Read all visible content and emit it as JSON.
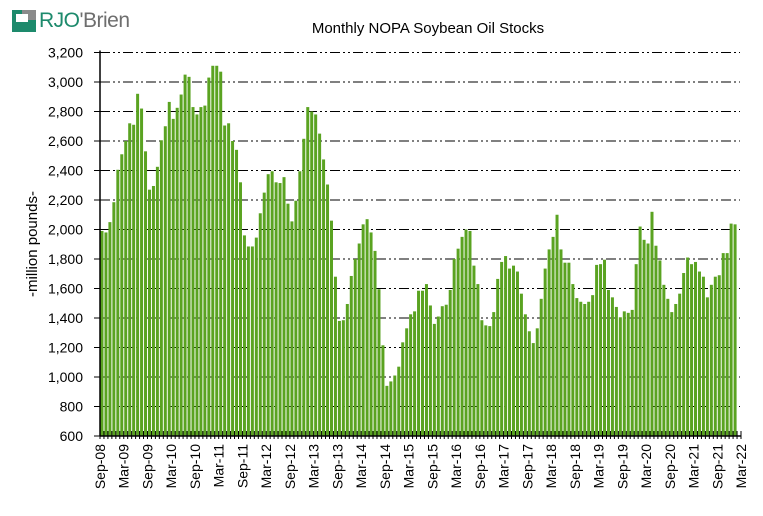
{
  "brand": {
    "logo_text_a": "RJO",
    "logo_text_b": "'Brien"
  },
  "chart_data": {
    "type": "bar",
    "title": "Monthly NOPA Soybean Oil Stocks",
    "xlabel": "",
    "ylabel": "-million pounds-",
    "ylim": [
      600,
      3200
    ],
    "yticks": [
      600,
      800,
      1000,
      1200,
      1400,
      1600,
      1800,
      2000,
      2200,
      2400,
      2600,
      2800,
      3000,
      3200
    ],
    "ytick_labels": [
      "600",
      "800",
      "1,000",
      "1,200",
      "1,400",
      "1,600",
      "1,800",
      "2,000",
      "2,200",
      "2,400",
      "2,600",
      "2,800",
      "3,000",
      "3,200"
    ],
    "grid": "horizontal dash-dot",
    "bar_color": "#5aa321",
    "start_month": "Sep-08",
    "axis_end_month": "Mar-22",
    "xtick_labels": [
      "Sep-08",
      "Mar-09",
      "Sep-09",
      "Mar-10",
      "Sep-10",
      "Mar-11",
      "Sep-11",
      "Mar-12",
      "Sep-12",
      "Mar-13",
      "Sep-13",
      "Mar-14",
      "Sep-14",
      "Mar-15",
      "Sep-15",
      "Mar-16",
      "Sep-16",
      "Mar-17",
      "Sep-17",
      "Mar-18",
      "Sep-18",
      "Mar-19",
      "Sep-19",
      "Mar-20",
      "Sep-20",
      "Mar-21",
      "Sep-21",
      "Mar-22"
    ],
    "values": [
      1990,
      1980,
      2050,
      2185,
      2405,
      2510,
      2600,
      2720,
      2710,
      2920,
      2820,
      2530,
      2270,
      2295,
      2425,
      2605,
      2700,
      2865,
      2750,
      2825,
      2915,
      3050,
      3035,
      2830,
      2780,
      2830,
      2840,
      3030,
      3110,
      3110,
      3070,
      2705,
      2720,
      2600,
      2540,
      2320,
      1960,
      1885,
      1885,
      1945,
      2110,
      2250,
      2375,
      2395,
      2320,
      2315,
      2355,
      2175,
      2055,
      2195,
      2395,
      2615,
      2830,
      2800,
      2780,
      2650,
      2475,
      2305,
      2060,
      1680,
      1380,
      1385,
      1495,
      1685,
      1800,
      1905,
      2035,
      2070,
      1980,
      1855,
      1595,
      1215,
      940,
      970,
      1010,
      1070,
      1235,
      1330,
      1425,
      1445,
      1585,
      1585,
      1630,
      1485,
      1360,
      1410,
      1480,
      1490,
      1590,
      1800,
      1870,
      1950,
      2000,
      1990,
      1755,
      1630,
      1385,
      1350,
      1345,
      1440,
      1665,
      1780,
      1820,
      1735,
      1755,
      1715,
      1565,
      1425,
      1310,
      1230,
      1330,
      1530,
      1735,
      1865,
      1950,
      2100,
      1865,
      1775,
      1775,
      1630,
      1535,
      1510,
      1495,
      1510,
      1555,
      1760,
      1765,
      1795,
      1590,
      1540,
      1475,
      1405,
      1445,
      1435,
      1455,
      1765,
      2020,
      1930,
      1905,
      2120,
      1890,
      1790,
      1625,
      1530,
      1440,
      1495,
      1565,
      1705,
      1810,
      1765,
      1780,
      1715,
      1680,
      1540,
      1625,
      1680,
      1690,
      1840,
      1840,
      2040,
      2035
    ]
  }
}
